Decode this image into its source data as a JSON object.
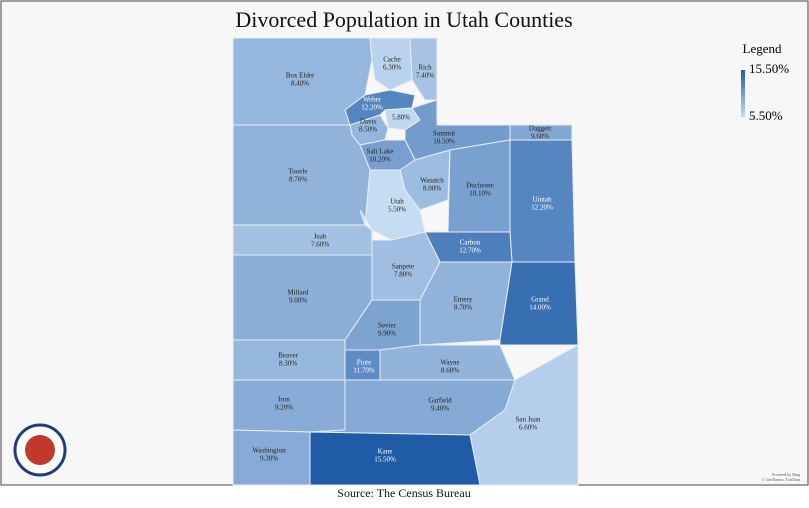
{
  "title": "Divorced Population in Utah Counties",
  "source": "Source: The Census Bureau",
  "credits": [
    "Powered by Bing",
    "© GeoNames, TomTom"
  ],
  "legend": {
    "title": "Legend",
    "max": {
      "value": 15.5,
      "label": "15.50%"
    },
    "min": {
      "value": 5.5,
      "label": "5.50%"
    }
  },
  "counties": [
    {
      "name": "Box Elder",
      "value": 8.4,
      "label": "8.40%"
    },
    {
      "name": "Cache",
      "value": 6.3,
      "label": "6.30%"
    },
    {
      "name": "Rich",
      "value": 7.4,
      "label": "7.40%"
    },
    {
      "name": "Weber",
      "value": 12.2,
      "label": "12.20%"
    },
    {
      "value": 5.8,
      "label": "5.80%"
    },
    {
      "name": "Davis",
      "value": 8.5,
      "label": "8.50%"
    },
    {
      "name": "Summit",
      "value": 10.5,
      "label": "10.50%"
    },
    {
      "name": "Daggett",
      "value": 9.6,
      "label": "9.60%"
    },
    {
      "name": "Salt Lake",
      "value": 10.2,
      "label": "10.20%"
    },
    {
      "name": "Tooele",
      "value": 8.7,
      "label": "8.70%"
    },
    {
      "name": "Wasatch",
      "value": 8.0,
      "label": "8.00%"
    },
    {
      "name": "Duchesne",
      "value": 10.1,
      "label": "10.10%"
    },
    {
      "name": "Uintah",
      "value": 12.2,
      "label": "12.20%"
    },
    {
      "name": "Utah",
      "value": 5.5,
      "label": "5.50%"
    },
    {
      "name": "Juab",
      "value": 7.6,
      "label": "7.60%"
    },
    {
      "name": "Carbon",
      "value": 12.7,
      "label": "12.70%"
    },
    {
      "name": "Sanpete",
      "value": 7.8,
      "label": "7.80%"
    },
    {
      "name": "Millard",
      "value": 9.0,
      "label": "9.00%"
    },
    {
      "name": "Emery",
      "value": 8.7,
      "label": "8.70%"
    },
    {
      "name": "Grand",
      "value": 14.0,
      "label": "14.00%"
    },
    {
      "name": "Sevier",
      "value": 9.9,
      "label": "9.90%"
    },
    {
      "name": "Beaver",
      "value": 8.3,
      "label": "8.30%"
    },
    {
      "name": "Piute",
      "value": 11.7,
      "label": "11.70%"
    },
    {
      "name": "Wayne",
      "value": 8.6,
      "label": "8.60%"
    },
    {
      "name": "Iron",
      "value": 9.2,
      "label": "9.20%"
    },
    {
      "name": "Garfield",
      "value": 9.4,
      "label": "9.40%"
    },
    {
      "name": "San Juan",
      "value": 6.6,
      "label": "6.60%"
    },
    {
      "name": "Washington",
      "value": 9.3,
      "label": "9.30%"
    },
    {
      "name": "Kane",
      "value": 15.5,
      "label": "15.50%"
    }
  ]
}
